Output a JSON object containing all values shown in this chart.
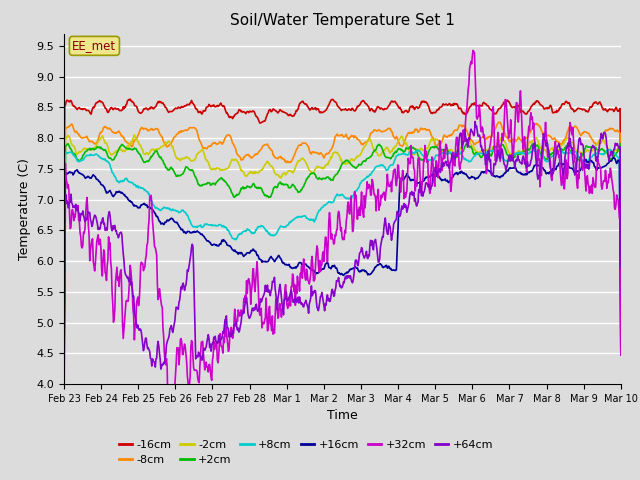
{
  "title": "Soil/Water Temperature Set 1",
  "xlabel": "Time",
  "ylabel": "Temperature (C)",
  "ylim": [
    4.0,
    9.7
  ],
  "yticks": [
    4.0,
    4.5,
    5.0,
    5.5,
    6.0,
    6.5,
    7.0,
    7.5,
    8.0,
    8.5,
    9.0,
    9.5
  ],
  "background_color": "#dcdcdc",
  "plot_bg_color": "#dcdcdc",
  "annotation_text": "EE_met",
  "annotation_color": "#8B0000",
  "annotation_bg": "#f0e68c",
  "series": [
    {
      "label": "-16cm",
      "color": "#cc0000",
      "lw": 1.2
    },
    {
      "label": "-8cm",
      "color": "#ff8800",
      "lw": 1.2
    },
    {
      "label": "-2cm",
      "color": "#cccc00",
      "lw": 1.2
    },
    {
      "label": "+2cm",
      "color": "#00bb00",
      "lw": 1.2
    },
    {
      "label": "+8cm",
      "color": "#00cccc",
      "lw": 1.2
    },
    {
      "label": "+16cm",
      "color": "#000099",
      "lw": 1.2
    },
    {
      "label": "+32cm",
      "color": "#cc00cc",
      "lw": 1.2
    },
    {
      "label": "+64cm",
      "color": "#8800cc",
      "lw": 1.2
    }
  ],
  "xtick_labels": [
    "Feb 23",
    "Feb 24",
    "Feb 25",
    "Feb 26",
    "Feb 27",
    "Feb 28",
    "Mar 1",
    "Mar 2",
    "Mar 3",
    "Mar 4",
    "Mar 5",
    "Mar 6",
    "Mar 7",
    "Mar 8",
    "Mar 9",
    "Mar 10"
  ],
  "n_points": 800,
  "legend_ncol_row1": 6,
  "legend_ncol_row2": 2
}
